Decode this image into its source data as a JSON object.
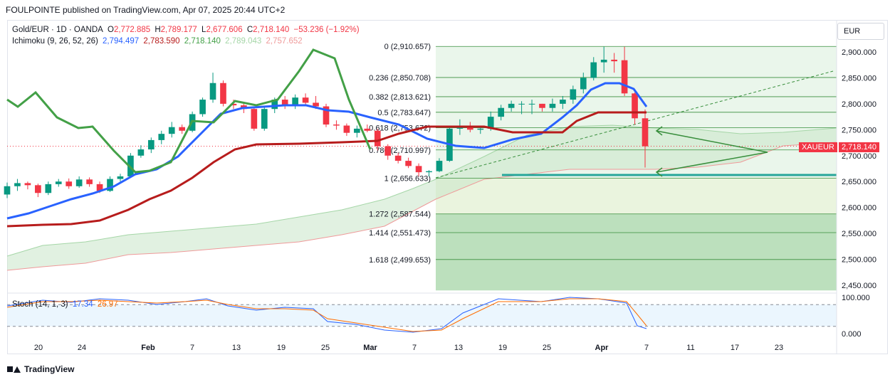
{
  "header": {
    "publish_line": "FOULPOINTE published on TradingView.com, Apr 07, 2025 20:44 UTC+2"
  },
  "legend": {
    "symbol": "Gold/EUR · 1D · OANDA",
    "o_label": "O",
    "o_value": "2,772.885",
    "h_label": "H",
    "h_value": "2,789.177",
    "l_label": "L",
    "l_value": "2,677.606",
    "c_label": "C",
    "c_value": "2,718.140",
    "change": "−53.236 (−1.92%)",
    "ichimoku_label": "Ichimoku (9, 26, 52, 26)",
    "ichimoku_values": [
      "2,794.497",
      "2,783.590",
      "2,718.140",
      "2,789.043",
      "2,757.652"
    ],
    "stoch_label": "Stoch (14, 1, 3)",
    "stoch_values": [
      "17.34",
      "26.97"
    ]
  },
  "currency_button": "EUR",
  "price_label": {
    "symbol": "XAUEUR",
    "value": "2,718.140"
  },
  "footer": {
    "brand": "TradingView"
  },
  "colors": {
    "bull": "#089981",
    "bear": "#f23645",
    "conversion": "#2962ff",
    "base": "#b71c1c",
    "lagging": "#43a047",
    "lead_a": "#a5d6a7",
    "lead_b": "#ef9a9a",
    "stoch_k": "#2962ff",
    "stoch_d": "#ff6d00",
    "fib": "#388e3c"
  },
  "chart_data": {
    "type": "candlestick",
    "price_axis": {
      "min": 2440,
      "max": 2925,
      "ticks": [
        "2,900.000",
        "2,850.000",
        "2,800.000",
        "2,750.000",
        "2,700.000",
        "2,650.000",
        "2,600.000",
        "2,550.000",
        "2,500.000",
        "2,450.000"
      ]
    },
    "stoch_axis": {
      "ticks": [
        "100.000",
        "0.000"
      ],
      "bands": [
        80,
        20
      ]
    },
    "x_ticks": [
      "20",
      "24",
      "Feb",
      "7",
      "13",
      "19",
      "25",
      "Mar",
      "7",
      "13",
      "19",
      "25",
      "Apr",
      "7",
      "11",
      "17",
      "23"
    ],
    "fib_levels": [
      {
        "label": "0 (2,910.657)",
        "value": 2910.657
      },
      {
        "label": "0.236 (2,850.708)",
        "value": 2850.708
      },
      {
        "label": "0.382 (2,813.621)",
        "value": 2813.621
      },
      {
        "label": "0.5 (2,783.647)",
        "value": 2783.647
      },
      {
        "label": "0.618 (2,753.672)",
        "value": 2753.672
      },
      {
        "label": "0.786 (2,710.997)",
        "value": 2710.997
      },
      {
        "label": "1 (2,656.633)",
        "value": 2656.633
      },
      {
        "label": "1.272 (2,587.544)",
        "value": 2587.544
      },
      {
        "label": "1.414 (2,551.473)",
        "value": 2551.473
      },
      {
        "label": "1.618 (2,499.653)",
        "value": 2499.653
      }
    ],
    "candles": [
      [
        2625,
        2648,
        2618,
        2641
      ],
      [
        2641,
        2655,
        2632,
        2647
      ],
      [
        2647,
        2650,
        2635,
        2643
      ],
      [
        2643,
        2646,
        2620,
        2628
      ],
      [
        2628,
        2650,
        2624,
        2645
      ],
      [
        2645,
        2655,
        2640,
        2650
      ],
      [
        2650,
        2656,
        2636,
        2641
      ],
      [
        2641,
        2660,
        2638,
        2654
      ],
      [
        2654,
        2658,
        2640,
        2645
      ],
      [
        2645,
        2650,
        2628,
        2632
      ],
      [
        2632,
        2660,
        2630,
        2655
      ],
      [
        2655,
        2665,
        2650,
        2660
      ],
      [
        2660,
        2705,
        2658,
        2700
      ],
      [
        2700,
        2720,
        2696,
        2712
      ],
      [
        2712,
        2735,
        2705,
        2730
      ],
      [
        2730,
        2748,
        2722,
        2742
      ],
      [
        2742,
        2765,
        2735,
        2755
      ],
      [
        2755,
        2760,
        2742,
        2748
      ],
      [
        2748,
        2785,
        2745,
        2780
      ],
      [
        2780,
        2812,
        2775,
        2808
      ],
      [
        2808,
        2860,
        2802,
        2840
      ],
      [
        2840,
        2845,
        2795,
        2800
      ],
      [
        2800,
        2808,
        2790,
        2797
      ],
      [
        2797,
        2800,
        2782,
        2790
      ],
      [
        2790,
        2795,
        2748,
        2752
      ],
      [
        2752,
        2795,
        2748,
        2790
      ],
      [
        2790,
        2812,
        2782,
        2808
      ],
      [
        2808,
        2815,
        2790,
        2798
      ],
      [
        2798,
        2818,
        2790,
        2812
      ],
      [
        2812,
        2820,
        2795,
        2802
      ],
      [
        2802,
        2815,
        2790,
        2795
      ],
      [
        2795,
        2800,
        2755,
        2760
      ],
      [
        2760,
        2768,
        2750,
        2758
      ],
      [
        2758,
        2762,
        2738,
        2744
      ],
      [
        2744,
        2758,
        2735,
        2752
      ],
      [
        2752,
        2760,
        2745,
        2748
      ],
      [
        2748,
        2752,
        2710,
        2718
      ],
      [
        2718,
        2722,
        2692,
        2700
      ],
      [
        2700,
        2705,
        2685,
        2690
      ],
      [
        2690,
        2696,
        2676,
        2680
      ],
      [
        2680,
        2685,
        2660,
        2668
      ],
      [
        2668,
        2672,
        2660,
        2670
      ],
      [
        2670,
        2695,
        2668,
        2690
      ],
      [
        2690,
        2758,
        2688,
        2752
      ],
      [
        2752,
        2770,
        2740,
        2758
      ],
      [
        2758,
        2765,
        2745,
        2750
      ],
      [
        2750,
        2755,
        2742,
        2752
      ],
      [
        2752,
        2785,
        2748,
        2775
      ],
      [
        2775,
        2798,
        2768,
        2792
      ],
      [
        2792,
        2806,
        2785,
        2800
      ],
      [
        2800,
        2805,
        2780,
        2800
      ],
      [
        2800,
        2808,
        2780,
        2800
      ],
      [
        2800,
        2800,
        2785,
        2792
      ],
      [
        2792,
        2810,
        2785,
        2800
      ],
      [
        2800,
        2815,
        2790,
        2808
      ],
      [
        2808,
        2835,
        2800,
        2828
      ],
      [
        2828,
        2860,
        2820,
        2850
      ],
      [
        2850,
        2890,
        2845,
        2880
      ],
      [
        2880,
        2910,
        2860,
        2885
      ],
      [
        2885,
        2898,
        2860,
        2882
      ],
      [
        2884,
        2910,
        2815,
        2820
      ],
      [
        2820,
        2822,
        2760,
        2772
      ],
      [
        2772,
        2789,
        2677,
        2718
      ]
    ],
    "series": [
      {
        "name": "Conversion",
        "values": []
      },
      {
        "name": "Base",
        "values": []
      }
    ]
  }
}
